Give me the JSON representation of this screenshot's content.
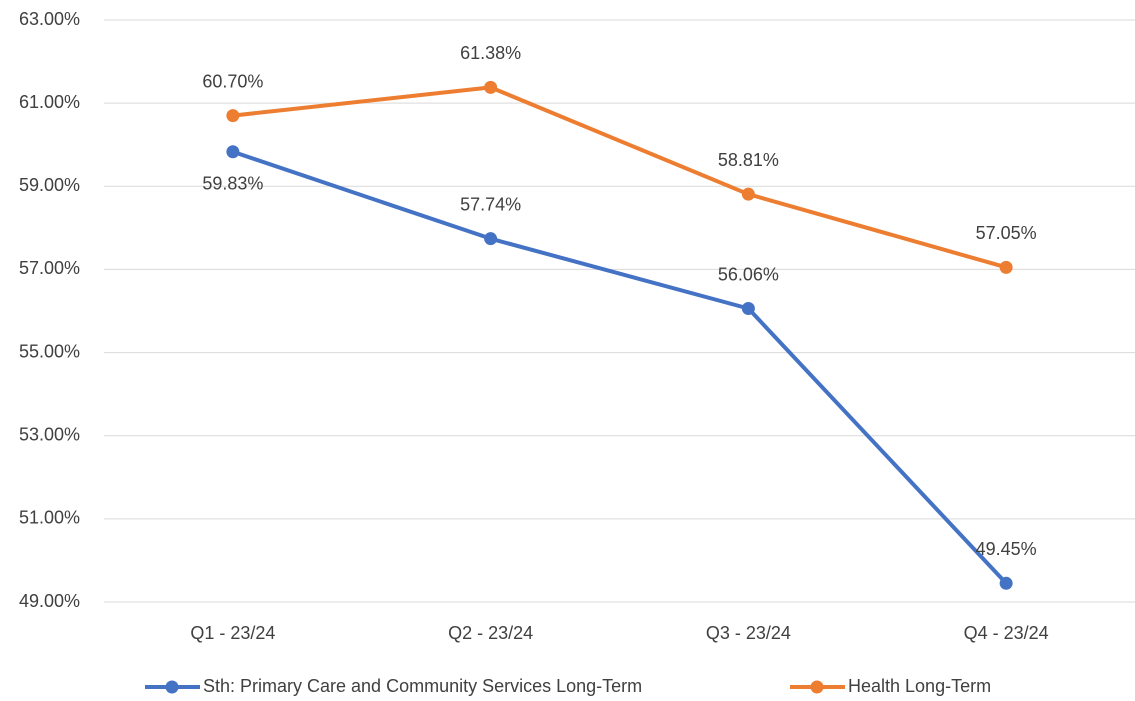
{
  "chart_data": {
    "type": "line",
    "categories": [
      "Q1 - 23/24",
      "Q2 - 23/24",
      "Q3 - 23/24",
      "Q4 - 23/24"
    ],
    "series": [
      {
        "name": "Sth: Primary Care and Community Services Long-Term",
        "color": "#4472c4",
        "values": [
          59.83,
          57.74,
          56.06,
          49.45
        ],
        "value_labels": [
          "59.83%",
          "57.74%",
          "56.06%",
          "49.45%"
        ]
      },
      {
        "name": "Health Long-Term",
        "color": "#ed7d31",
        "values": [
          60.7,
          61.38,
          58.81,
          57.05
        ],
        "value_labels": [
          "60.70%",
          "61.38%",
          "58.81%",
          "57.05%"
        ]
      }
    ],
    "ylim": [
      49,
      63
    ],
    "yticks": [
      {
        "value": 49,
        "label": "49.00%"
      },
      {
        "value": 51,
        "label": "51.00%"
      },
      {
        "value": 53,
        "label": "53.00%"
      },
      {
        "value": 55,
        "label": "55.00%"
      },
      {
        "value": 57,
        "label": "57.00%"
      },
      {
        "value": 59,
        "label": "59.00%"
      },
      {
        "value": 61,
        "label": "61.00%"
      },
      {
        "value": 63,
        "label": "63.00%"
      }
    ],
    "grid": true,
    "legend": "bottom"
  }
}
